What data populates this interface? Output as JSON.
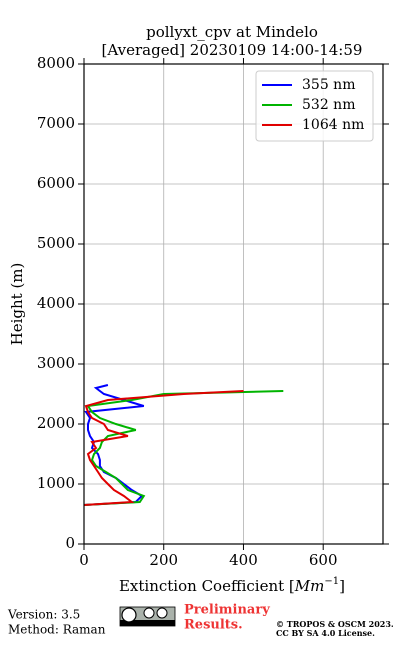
{
  "chart_data": {
    "type": "profile",
    "title": [
      "pollyxt_cpv at Mindelo",
      "[Averaged] 20230109 14:00-14:59"
    ],
    "ylabel": "Height (m)",
    "xlabel_parts": [
      "Extinction Coefficient [",
      "Mm",
      "−1",
      "]"
    ],
    "xlim": [
      0,
      750
    ],
    "xticks": [
      0,
      200,
      400,
      600
    ],
    "ylim": [
      0,
      8000
    ],
    "yticks": [
      0,
      1000,
      2000,
      3000,
      4000,
      5000,
      6000,
      7000,
      8000
    ],
    "grid": true,
    "legend": "upper right",
    "heights": [
      650,
      700,
      800,
      900,
      1000,
      1100,
      1200,
      1300,
      1400,
      1500,
      1600,
      1700,
      1800,
      1900,
      2000,
      2100,
      2200,
      2300,
      2400,
      2500,
      2550,
      2600,
      2650
    ],
    "series": [
      {
        "name": "355 nm",
        "color": "#0000ff",
        "values": [
          0,
          130,
          145,
          120,
          100,
          80,
          50,
          40,
          40,
          35,
          20,
          25,
          15,
          10,
          10,
          15,
          5,
          150,
          100,
          50,
          40,
          30,
          60
        ]
      },
      {
        "name": "532 nm",
        "color": "#00b400",
        "values": [
          0,
          140,
          150,
          110,
          95,
          80,
          55,
          30,
          20,
          25,
          40,
          45,
          60,
          130,
          80,
          40,
          20,
          10,
          120,
          200,
          500,
          null,
          null
        ]
      },
      {
        "name": "1064 nm",
        "color": "#e00000",
        "values": [
          0,
          120,
          100,
          75,
          60,
          45,
          35,
          25,
          15,
          10,
          30,
          20,
          110,
          60,
          50,
          20,
          10,
          5,
          60,
          250,
          400,
          null,
          null
        ]
      }
    ]
  },
  "footer": {
    "version": "Version: 3.5",
    "method": "Method: Raman",
    "preliminary": [
      "Preliminary",
      "Results."
    ],
    "copyright": [
      "© TROPOS & OSCM 2023.",
      "CC BY SA 4.0 License."
    ]
  }
}
